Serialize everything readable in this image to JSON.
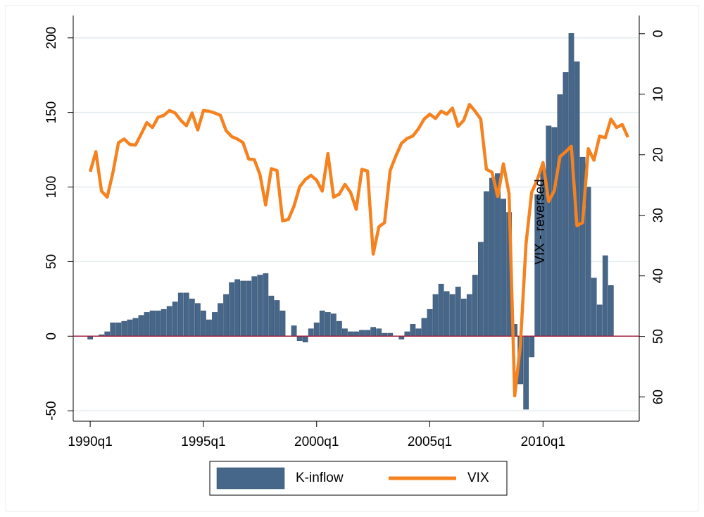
{
  "chart_data": {
    "type": "combo",
    "x": [
      1990,
      1990.25,
      1990.5,
      1990.75,
      1991,
      1991.25,
      1991.5,
      1991.75,
      1992,
      1992.25,
      1992.5,
      1992.75,
      1993,
      1993.25,
      1993.5,
      1993.75,
      1994,
      1994.25,
      1994.5,
      1994.75,
      1995,
      1995.25,
      1995.5,
      1995.75,
      1996,
      1996.25,
      1996.5,
      1996.75,
      1997,
      1997.25,
      1997.5,
      1997.75,
      1998,
      1998.25,
      1998.5,
      1998.75,
      1999,
      1999.25,
      1999.5,
      1999.75,
      2000,
      2000.25,
      2000.5,
      2000.75,
      2001,
      2001.25,
      2001.5,
      2001.75,
      2002,
      2002.25,
      2002.5,
      2002.75,
      2003,
      2003.25,
      2003.5,
      2003.75,
      2004,
      2004.25,
      2004.5,
      2004.75,
      2005,
      2005.25,
      2005.5,
      2005.75,
      2006,
      2006.25,
      2006.5,
      2006.75,
      2007,
      2007.25,
      2007.5,
      2007.75,
      2008,
      2008.25,
      2008.5,
      2008.75,
      2009,
      2009.25,
      2009.5,
      2009.75,
      2010,
      2010.25,
      2010.5,
      2010.75,
      2011,
      2011.25,
      2011.5,
      2011.75,
      2012,
      2012.25,
      2012.5,
      2012.75,
      2013,
      2013.25,
      2013.5,
      2013.75
    ],
    "series": [
      {
        "name": "K-inflow",
        "type": "bar",
        "color": "#47678a",
        "values": [
          -2,
          0,
          1,
          3,
          9,
          9,
          10,
          11,
          12,
          14,
          16,
          17,
          17,
          18,
          20,
          23,
          29,
          29,
          25,
          22,
          17,
          11,
          16,
          22,
          28,
          36,
          38,
          37,
          37,
          40,
          41,
          42,
          27,
          24,
          17,
          0,
          7,
          -3,
          -4,
          5,
          9,
          17,
          16,
          15,
          10,
          5,
          3,
          3,
          4,
          4,
          6,
          5,
          2,
          2,
          0,
          -2,
          3,
          8,
          5,
          12,
          18,
          28,
          35,
          30,
          28,
          33,
          25,
          28,
          41,
          63,
          97,
          106,
          109,
          92,
          83,
          8,
          -32,
          -49,
          -14,
          95,
          112,
          141,
          140,
          162,
          177,
          203,
          184,
          120,
          100,
          39,
          21,
          54,
          34,
          null,
          null,
          null
        ]
      },
      {
        "name": "VIX",
        "type": "line",
        "color": "#f5821f",
        "axis": "y2",
        "values": [
          22.8,
          19.5,
          26,
          27,
          23,
          18,
          17.4,
          18.3,
          18.4,
          16.6,
          14.7,
          15.5,
          13.8,
          13.5,
          12.7,
          13.1,
          14.3,
          15.2,
          13.1,
          15.9,
          12.7,
          12.8,
          13.1,
          13.5,
          16,
          17,
          17.4,
          18,
          20.7,
          20.8,
          23.3,
          28.3,
          22.3,
          22.6,
          30.9,
          30.7,
          28.5,
          25.3,
          24.1,
          23.4,
          24.2,
          26,
          19.8,
          27,
          26.5,
          24.9,
          26.2,
          29,
          22.4,
          22.7,
          36.4,
          31.9,
          31.2,
          22.6,
          20.2,
          18.1,
          17.3,
          16.9,
          15.7,
          14.1,
          13.3,
          14,
          12.8,
          13.3,
          12.3,
          15.3,
          14.3,
          11.7,
          12.8,
          14.1,
          22.4,
          22.9,
          26.9,
          21.5,
          26.4,
          59.8,
          51.5,
          34.7,
          26.2,
          24.1,
          21.3,
          27.7,
          25.9,
          20.3,
          19.5,
          18.6,
          31.7,
          31.2,
          19,
          20.9,
          16.9,
          17.2,
          14.1,
          15.5,
          15,
          17.1
        ]
      }
    ],
    "xlim": [
      1989.25,
      2014.25
    ],
    "xticks": [
      {
        "value": 1990,
        "label": "1990q1"
      },
      {
        "value": 1995,
        "label": "1995q1"
      },
      {
        "value": 2000,
        "label": "2000q1"
      },
      {
        "value": 2005,
        "label": "2005q1"
      },
      {
        "value": 2010,
        "label": "2010q1"
      }
    ],
    "ylim": [
      -57,
      215
    ],
    "yticks": [
      -50,
      0,
      50,
      100,
      150,
      200
    ],
    "y2lim": [
      64,
      -3
    ],
    "y2ticks": [
      0,
      10,
      20,
      30,
      40,
      50,
      60
    ],
    "y2label": "VIX - reversed",
    "grid": true,
    "yline": {
      "value": 0,
      "color": "#a3203f"
    },
    "legend": "bottom"
  }
}
